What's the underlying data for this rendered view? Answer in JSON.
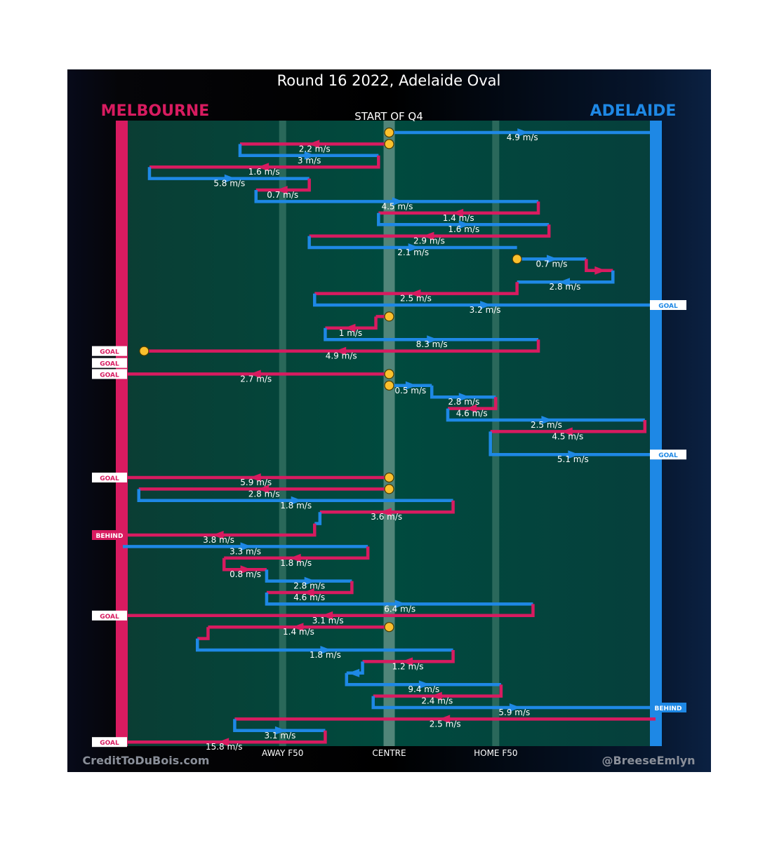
{
  "chart_data": {
    "type": "line",
    "title": "Round 16 2022, Adelaide Oval",
    "subtitle": "START OF Q4",
    "teams": {
      "left": {
        "name": "MELBOURNE",
        "color": "#d81b60"
      },
      "right": {
        "name": "ADELAIDE",
        "color": "#1e88e5"
      }
    },
    "x_axis": {
      "ticks": [
        {
          "label": "AWAY F50",
          "x": 0.3
        },
        {
          "label": "CENTRE",
          "x": 0.5
        },
        {
          "label": "HOME F50",
          "x": 0.7
        }
      ],
      "xlim": [
        0,
        1
      ]
    },
    "footer": {
      "left": "CreditToDuBois.com",
      "right": "@BreeseEmlyn"
    },
    "colors": {
      "melbourne": "#d81b60",
      "adelaide": "#1e88e5",
      "field": "#004d40",
      "marker": "#fbc02d"
    },
    "chains": [
      {
        "start": 0.5,
        "bounce": true,
        "end": "adl_goal",
        "segments": [
          {
            "team": "A",
            "y": 0,
            "to": 1.0,
            "speed": "4.9 m/s"
          }
        ]
      },
      {
        "start": 0.5,
        "bounce": true,
        "end": "turnover",
        "segments": [
          {
            "team": "M",
            "y": 1,
            "to": 0.22,
            "speed": "2.2 m/s"
          },
          {
            "team": "A",
            "y": 2,
            "to": 0.48,
            "speed": "3 m/s"
          },
          {
            "team": "M",
            "y": 3,
            "to": 0.05,
            "speed": "1.6 m/s"
          },
          {
            "team": "A",
            "y": 4,
            "to": 0.35,
            "speed": "5.8 m/s"
          },
          {
            "team": "M",
            "y": 5,
            "to": 0.25,
            "speed": "0.7 m/s"
          },
          {
            "team": "A",
            "y": 6,
            "to": 0.78,
            "speed": "4.5 m/s"
          },
          {
            "team": "M",
            "y": 7,
            "to": 0.48,
            "speed": "1.4 m/s"
          },
          {
            "team": "A",
            "y": 8,
            "to": 0.8,
            "speed": "1.6 m/s"
          },
          {
            "team": "M",
            "y": 9,
            "to": 0.35,
            "speed": "2.9 m/s"
          },
          {
            "team": "A",
            "y": 10,
            "to": 0.74,
            "speed": "2.1 m/s"
          }
        ]
      },
      {
        "start": 0.74,
        "bounce": false,
        "end": "turnover",
        "segments": [
          {
            "team": "A",
            "y": 11,
            "to": 0.87,
            "speed": "0.7 m/s"
          },
          {
            "team": "M",
            "y": 12,
            "to": 0.92,
            "speed": ""
          },
          {
            "team": "A",
            "y": 13,
            "to": 0.74,
            "speed": "2.8 m/s"
          },
          {
            "team": "M",
            "y": 14,
            "to": 0.36,
            "speed": "2.5 m/s"
          },
          {
            "team": "A",
            "y": 15,
            "to": 1.0,
            "speed": "3.2 m/s"
          }
        ],
        "endLabel": "GOAL"
      },
      {
        "start": 0.5,
        "bounce": true,
        "end": "mel_goal",
        "segments": [
          {
            "team": "M",
            "y": 16,
            "to": 0.475,
            "speed": ""
          },
          {
            "team": "M",
            "y": 17,
            "to": 0.38,
            "speed": "1 m/s"
          },
          {
            "team": "A",
            "y": 18,
            "to": 0.78,
            "speed": "8.3 m/s"
          },
          {
            "team": "M",
            "y": 19,
            "to": 0.04,
            "speed": "4.9 m/s"
          }
        ],
        "endLabel": "GOAL",
        "markerAtEnd": true
      },
      {
        "start": 0.5,
        "bounce": true,
        "end": "mel_goal",
        "segments": [
          {
            "team": "M",
            "y": 21,
            "to": 0.0,
            "speed": "2.7 m/s"
          }
        ],
        "endLabel": "GOAL"
      },
      {
        "start": 0.5,
        "bounce": true,
        "end": "adl_goal",
        "segments": [
          {
            "team": "A",
            "y": 22,
            "to": 0.58,
            "speed": "0.5 m/s"
          },
          {
            "team": "A",
            "y": 23,
            "to": 0.7,
            "speed": "2.8 m/s"
          },
          {
            "team": "M",
            "y": 24,
            "to": 0.61,
            "speed": "4.6 m/s"
          },
          {
            "team": "A",
            "y": 25,
            "to": 0.98,
            "speed": "2.5 m/s"
          },
          {
            "team": "M",
            "y": 26,
            "to": 0.69,
            "speed": "4.5 m/s"
          },
          {
            "team": "A",
            "y": 28,
            "to": 1.0,
            "speed": "5.1 m/s"
          }
        ],
        "endLabel": "GOAL"
      },
      {
        "start": 0.5,
        "bounce": true,
        "end": "mel_goal",
        "segments": [
          {
            "team": "M",
            "y": 30,
            "to": 0.0,
            "speed": "5.9 m/s"
          }
        ],
        "endLabel": "GOAL"
      },
      {
        "start": 0.5,
        "bounce": true,
        "end": "mel_behind",
        "segments": [
          {
            "team": "M",
            "y": 31,
            "to": 0.03,
            "speed": "2.8 m/s"
          },
          {
            "team": "A",
            "y": 32,
            "to": 0.62,
            "speed": "1.8 m/s"
          },
          {
            "team": "M",
            "y": 33,
            "to": 0.37,
            "speed": "3.6 m/s"
          },
          {
            "team": "A",
            "y": 34,
            "to": 0.36,
            "speed": ""
          },
          {
            "team": "M",
            "y": 35,
            "to": 0.0,
            "speed": "3.8 m/s"
          }
        ],
        "endLabel": "BEHIND"
      },
      {
        "start": 0.0,
        "bounce": false,
        "end": "turnover",
        "segments": [
          {
            "team": "A",
            "y": 36,
            "to": 0.46,
            "speed": "3.3 m/s"
          },
          {
            "team": "M",
            "y": 37,
            "to": 0.19,
            "speed": "1.8 m/s"
          },
          {
            "team": "M",
            "y": 38,
            "to": 0.27,
            "speed": "0.8 m/s"
          },
          {
            "team": "A",
            "y": 39,
            "to": 0.43,
            "speed": "2.8 m/s"
          },
          {
            "team": "M",
            "y": 40,
            "to": 0.27,
            "speed": "4.6 m/s"
          },
          {
            "team": "A",
            "y": 41,
            "to": 0.77,
            "speed": "6.4 m/s"
          },
          {
            "team": "M",
            "y": 42,
            "to": 0.0,
            "speed": "3.1 m/s"
          }
        ],
        "endLabel": "GOAL"
      },
      {
        "start": 0.5,
        "bounce": true,
        "end": "turnover",
        "segments": [
          {
            "team": "M",
            "y": 43,
            "to": 0.16,
            "speed": "1.4 m/s"
          },
          {
            "team": "M",
            "y": 44,
            "to": 0.14,
            "speed": ""
          },
          {
            "team": "A",
            "y": 45,
            "to": 0.62,
            "speed": "1.8 m/s"
          },
          {
            "team": "M",
            "y": 46,
            "to": 0.45,
            "speed": "1.2 m/s"
          },
          {
            "team": "A",
            "y": 47,
            "to": 0.42,
            "speed": ""
          },
          {
            "team": "A",
            "y": 48,
            "to": 0.71,
            "speed": "9.4 m/s"
          },
          {
            "team": "M",
            "y": 49,
            "to": 0.47,
            "speed": "2.4 m/s"
          },
          {
            "team": "A",
            "y": 50,
            "to": 1.0,
            "speed": "5.9 m/s"
          }
        ],
        "endLabel": "BEHIND"
      },
      {
        "start": 1.0,
        "bounce": false,
        "end": "mel_goal",
        "segments": [
          {
            "team": "M",
            "y": 51,
            "to": 0.21,
            "speed": "2.5 m/s"
          },
          {
            "team": "A",
            "y": 52,
            "to": 0.38,
            "speed": "3.1 m/s"
          },
          {
            "team": "M",
            "y": 53,
            "to": 0.0,
            "speed": "15.8 m/s"
          }
        ],
        "endLabel": "GOAL"
      }
    ]
  }
}
